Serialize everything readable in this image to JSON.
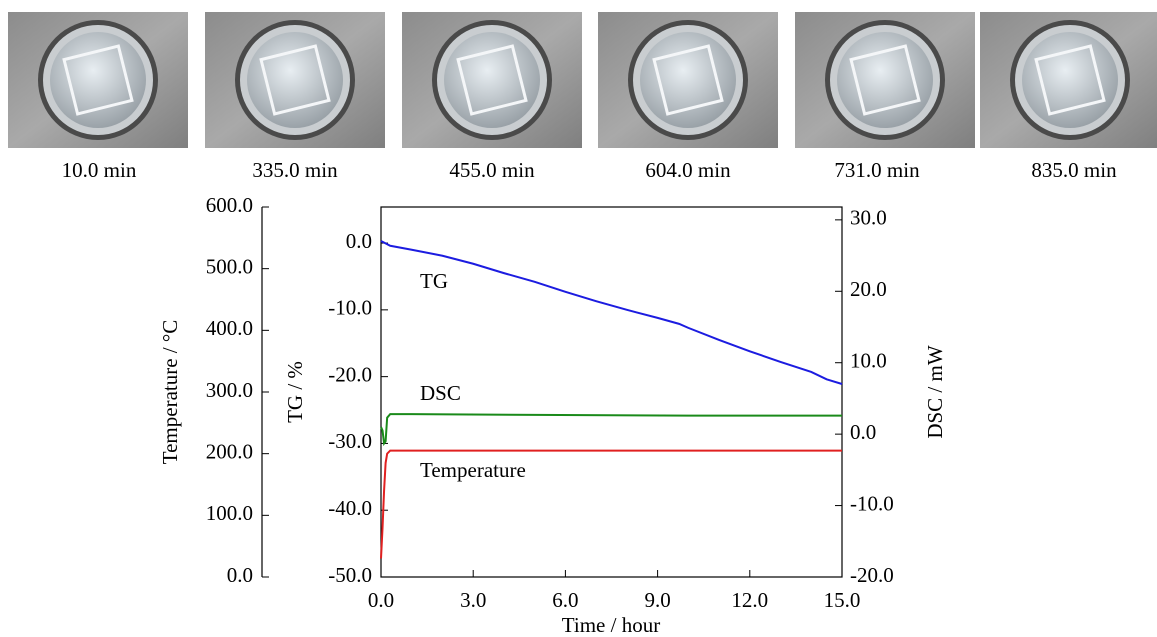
{
  "images": [
    {
      "caption": "10.0 min"
    },
    {
      "caption": "335.0 min"
    },
    {
      "caption": "455.0 min"
    },
    {
      "caption": "604.0 min"
    },
    {
      "caption": "731.0 min"
    },
    {
      "caption": "835.0 min"
    }
  ],
  "chart_data": {
    "type": "line",
    "x_label": "Time  /  hour",
    "y_label": "TG  /  %",
    "y2_label": "DSC  /  mW",
    "y3_label": "Temperature  /  °C",
    "xlim": [
      0,
      15
    ],
    "xticks": [
      {
        "value": 0,
        "label": "0.0"
      },
      {
        "value": 3,
        "label": "3.0"
      },
      {
        "value": 6,
        "label": "6.0"
      },
      {
        "value": 9,
        "label": "9.0"
      },
      {
        "value": 12,
        "label": "12.0"
      },
      {
        "value": 15,
        "label": "15.0"
      }
    ],
    "ylim": [
      -50,
      5.4
    ],
    "yticks": [
      {
        "value": -50,
        "label": "-50.0"
      },
      {
        "value": -40,
        "label": "-40.0"
      },
      {
        "value": -30,
        "label": "-30.0"
      },
      {
        "value": -20,
        "label": "-20.0"
      },
      {
        "value": -10,
        "label": "-10.0"
      },
      {
        "value": 0,
        "label": "0.0"
      }
    ],
    "y2lim": [
      -20,
      31.8
    ],
    "y2ticks": [
      {
        "value": -20,
        "label": "-20.0"
      },
      {
        "value": -10,
        "label": "-10.0"
      },
      {
        "value": 0,
        "label": "0.0"
      },
      {
        "value": 10,
        "label": "10.0"
      },
      {
        "value": 20,
        "label": "20.0"
      },
      {
        "value": 30,
        "label": "30.0"
      }
    ],
    "y3lim": [
      0,
      600
    ],
    "y3ticks": [
      {
        "value": 0,
        "label": "0.0"
      },
      {
        "value": 100,
        "label": "100.0"
      },
      {
        "value": 200,
        "label": "200.0"
      },
      {
        "value": 300,
        "label": "300.0"
      },
      {
        "value": 400,
        "label": "400.0"
      },
      {
        "value": 500,
        "label": "500.0"
      },
      {
        "value": 600,
        "label": "600.0"
      }
    ],
    "series": [
      {
        "name": "TG",
        "color": "#1c1ce0",
        "axis": "y",
        "x": [
          0,
          0.3,
          1,
          2,
          3,
          4,
          5,
          6,
          7,
          8,
          9,
          9.7,
          10,
          11,
          12,
          13,
          14,
          14.5,
          15
        ],
        "values": [
          0.3,
          -0.4,
          -1.0,
          -1.9,
          -3.1,
          -4.5,
          -5.8,
          -7.3,
          -8.7,
          -10.0,
          -11.2,
          -12.1,
          -12.7,
          -14.5,
          -16.2,
          -17.8,
          -19.3,
          -20.4,
          -21.1
        ]
      },
      {
        "name": "DSC",
        "color": "#1a8a1a",
        "axis": "y2",
        "x": [
          0,
          0.05,
          0.1,
          0.15,
          0.2,
          0.3,
          1,
          5,
          10,
          15
        ],
        "values": [
          1.0,
          0.5,
          -1.3,
          -1.0,
          2.3,
          2.8,
          2.8,
          2.7,
          2.6,
          2.6
        ]
      },
      {
        "name": "Temperature",
        "color": "#e02020",
        "axis": "y3",
        "x": [
          0,
          0.05,
          0.1,
          0.15,
          0.2,
          0.3,
          15
        ],
        "values": [
          30,
          80,
          140,
          185,
          200,
          205,
          205
        ]
      }
    ]
  }
}
